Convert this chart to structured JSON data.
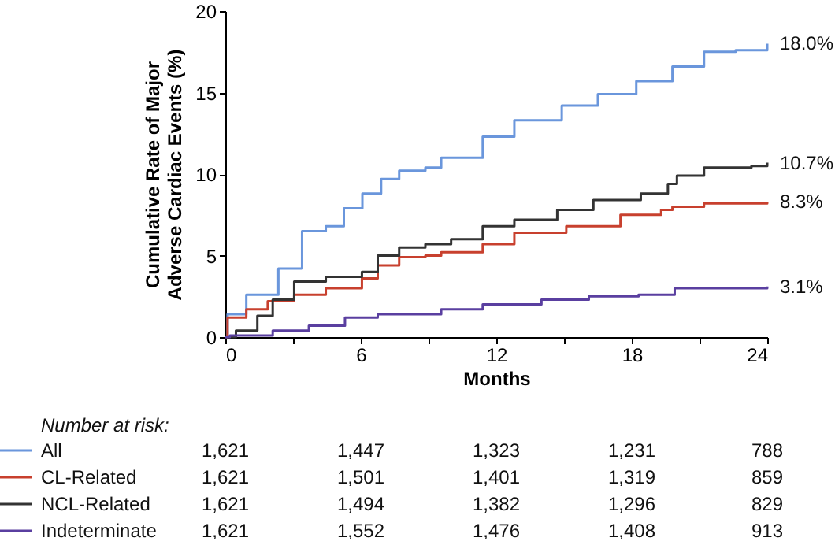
{
  "chart_data": {
    "type": "step",
    "xlabel": "Months",
    "ylabel": "Cumulative Rate of Major Adverse Cardiac Events (%)",
    "xlim": [
      0,
      24
    ],
    "xticks": [
      0,
      {
        "value": 3,
        "label": null
      },
      6,
      {
        "value": 9,
        "label": null
      },
      12,
      {
        "value": 15,
        "label": null
      },
      18,
      {
        "value": 21,
        "label": null
      },
      24
    ],
    "ylim": [
      0,
      20
    ],
    "yticks": [
      0,
      5,
      10,
      15,
      20
    ],
    "grid": false,
    "legend": "bottom",
    "series": [
      {
        "name": "All",
        "color": "#6a96dc",
        "x": [
          0,
          0.1,
          0.93,
          2.35,
          3.4,
          4.45,
          5.25,
          6.07,
          6.9,
          7.7,
          8.86,
          9.56,
          11.4,
          12.8,
          14.9,
          16.5,
          18.2,
          19.8,
          21.2,
          22.6,
          24
        ],
        "values": [
          0,
          1.4,
          2.6,
          4.2,
          6.5,
          6.8,
          7.9,
          8.8,
          9.7,
          10.2,
          10.4,
          11.0,
          12.3,
          13.3,
          14.2,
          14.9,
          15.7,
          16.6,
          17.5,
          17.6,
          18.0
        ]
      },
      {
        "name": "CL-Related",
        "color": "#c8402e",
        "x": [
          0,
          0.1,
          0.93,
          1.88,
          3.05,
          4.45,
          6.05,
          6.75,
          7.7,
          8.86,
          9.56,
          11.4,
          12.8,
          15.1,
          17.5,
          19.3,
          19.8,
          21.2,
          24
        ],
        "values": [
          0,
          1.2,
          1.7,
          2.2,
          2.6,
          3.0,
          3.6,
          4.4,
          4.9,
          5.0,
          5.2,
          5.7,
          6.4,
          6.8,
          7.5,
          7.8,
          8.0,
          8.2,
          8.3
        ]
      },
      {
        "name": "NCL-Related",
        "color": "#333333",
        "x": [
          0,
          0.47,
          1.42,
          2.1,
          3.05,
          4.45,
          6.05,
          6.75,
          7.7,
          8.86,
          10.0,
          11.4,
          12.8,
          14.7,
          16.3,
          18.4,
          19.6,
          20.0,
          21.2,
          23.3,
          24
        ],
        "values": [
          0,
          0.4,
          1.3,
          2.3,
          3.4,
          3.7,
          4.0,
          5.0,
          5.5,
          5.7,
          6.0,
          6.8,
          7.2,
          7.8,
          8.4,
          8.8,
          9.4,
          9.9,
          10.4,
          10.5,
          10.7
        ]
      },
      {
        "name": "Indeterminate",
        "color": "#5a3fa0",
        "x": [
          0,
          0.2,
          2.1,
          3.7,
          5.3,
          6.75,
          8.86,
          9.56,
          11.4,
          14.0,
          16.1,
          18.3,
          19.9,
          24
        ],
        "values": [
          0,
          0.1,
          0.4,
          0.7,
          1.2,
          1.4,
          1.4,
          1.7,
          2.0,
          2.3,
          2.5,
          2.6,
          3.0,
          3.1
        ]
      }
    ],
    "annotations": [
      "18.0%",
      "8.3%",
      "10.7%",
      "3.1%",
      "Number at risk:",
      "1,621",
      "1,447",
      "1,323",
      "1,231",
      "788",
      "1,621",
      "1,501",
      "1,401",
      "1,319",
      "859",
      "1,621",
      "1,494",
      "1,382",
      "1,296",
      "829",
      "1,621",
      "1,552",
      "1,476",
      "1,408",
      "913"
    ]
  }
}
